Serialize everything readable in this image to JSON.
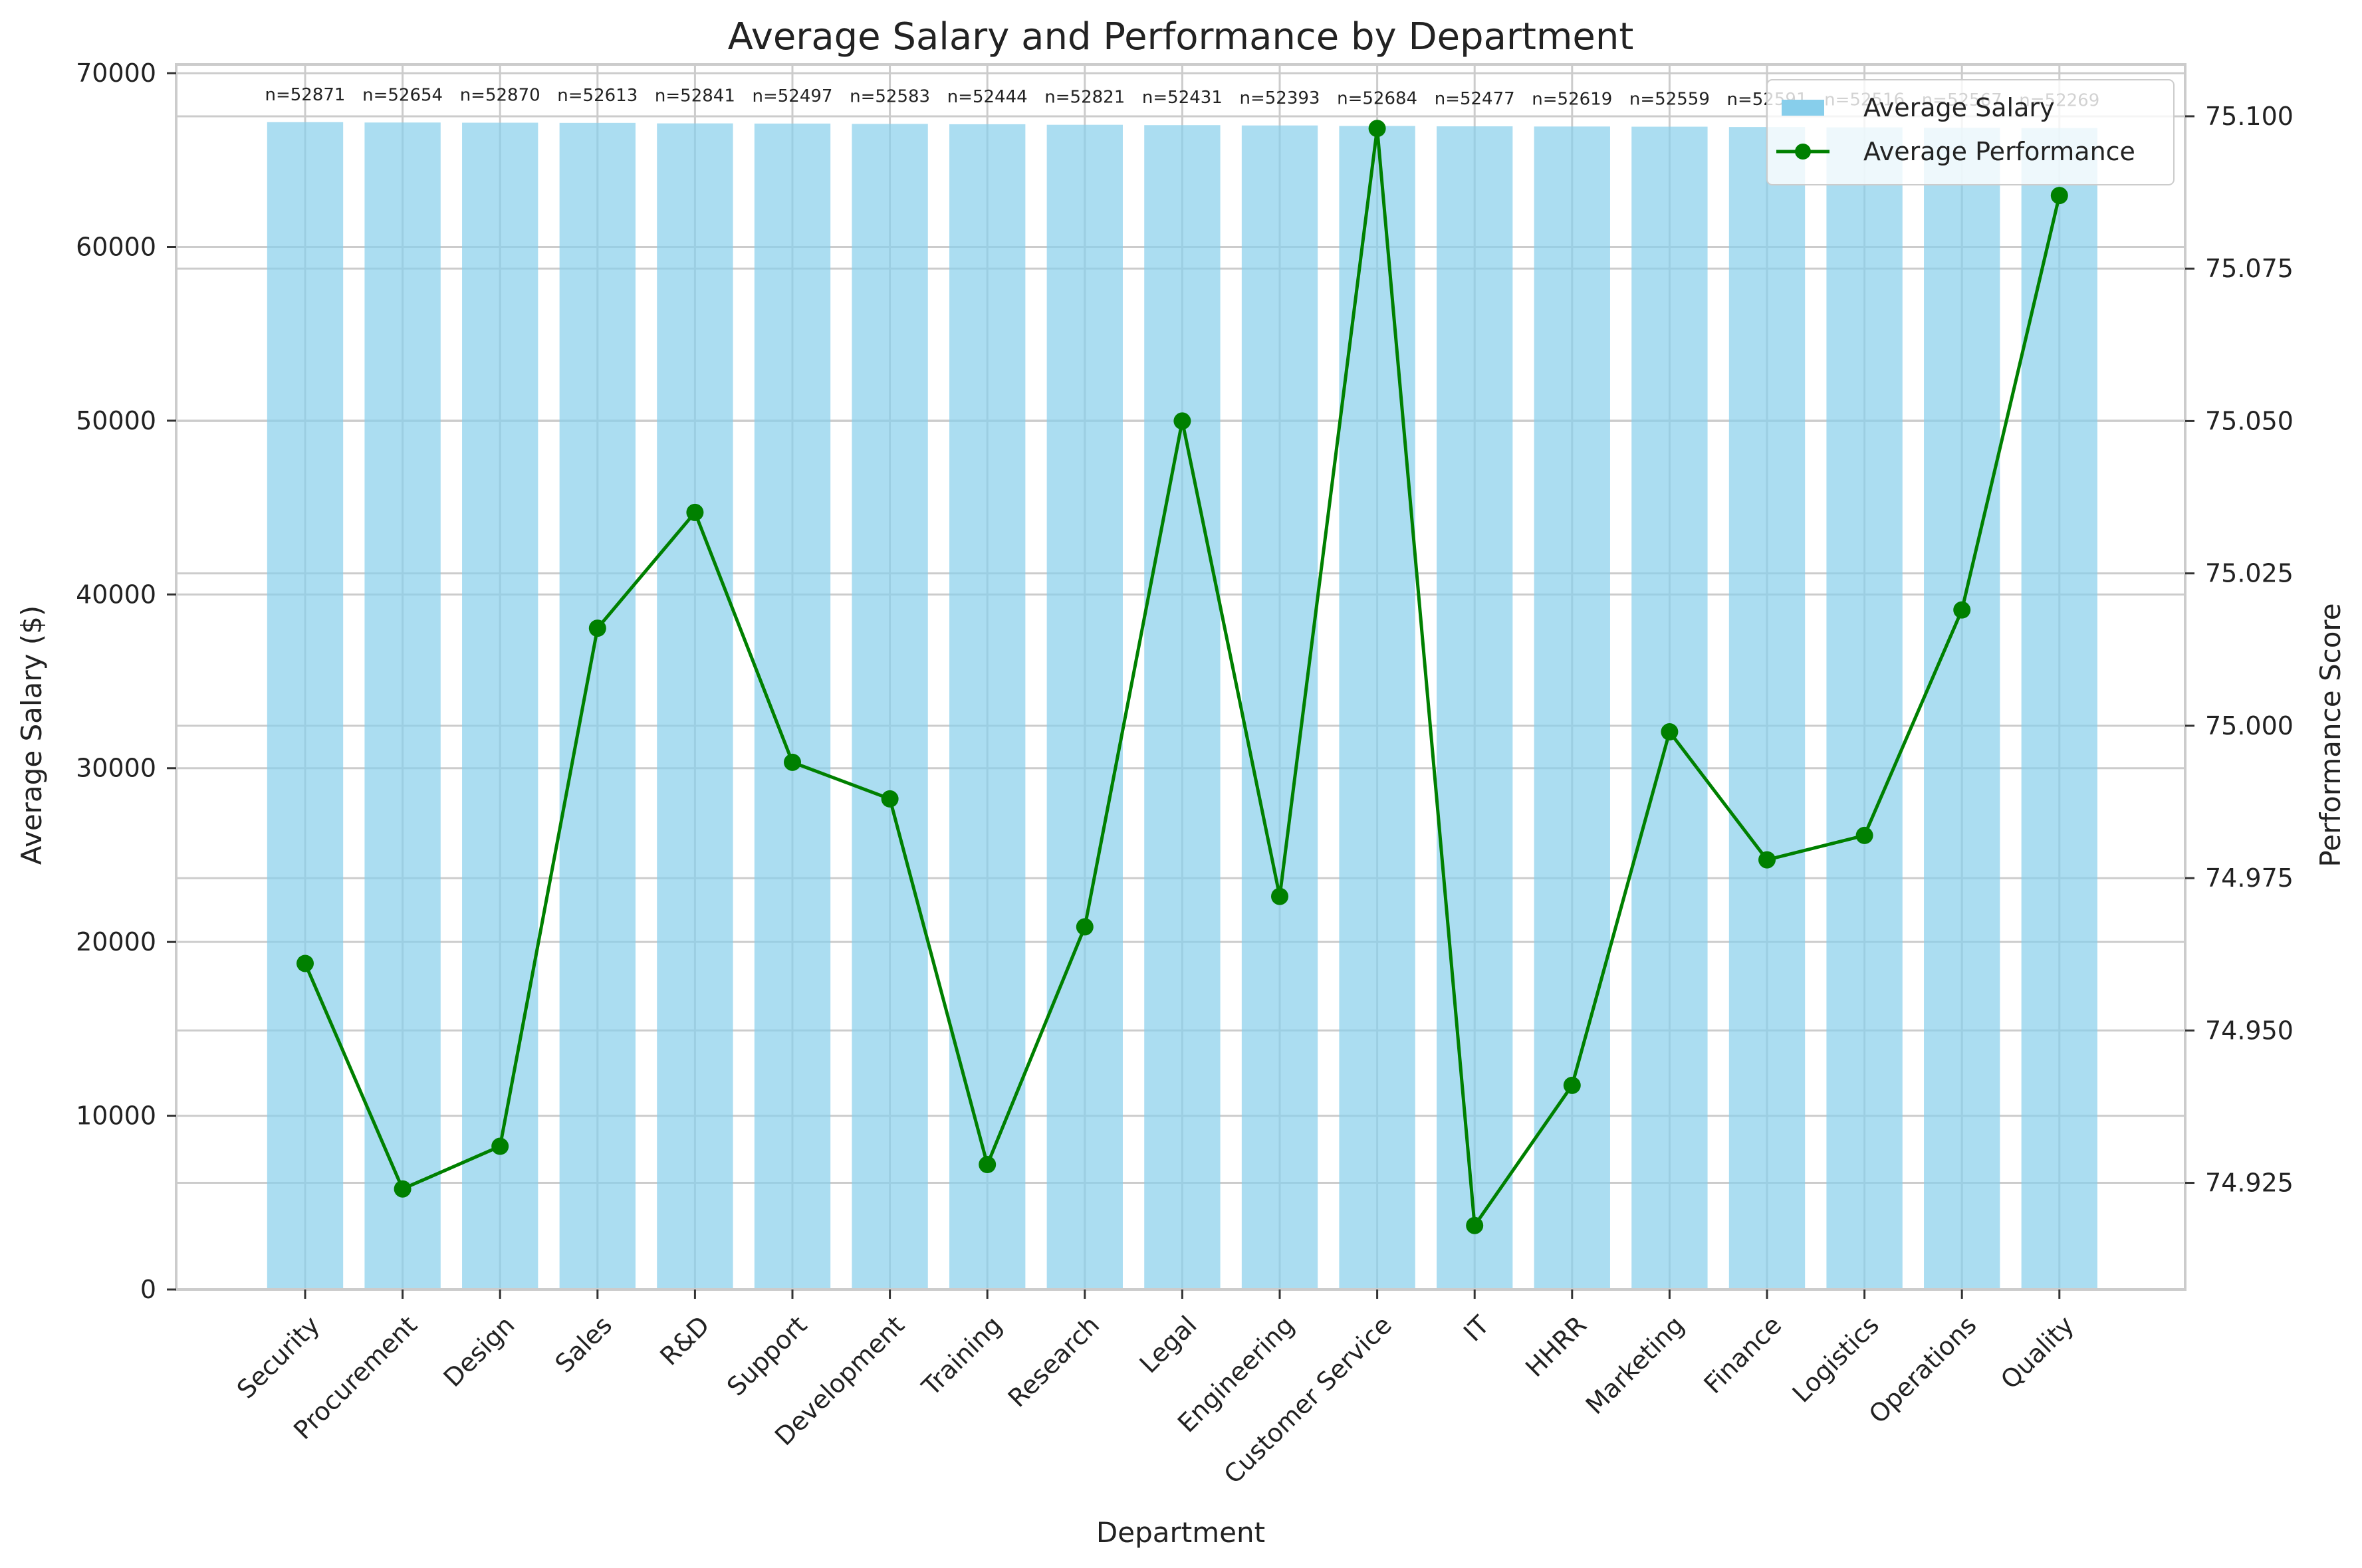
{
  "chart_data": {
    "type": "bar+line",
    "title": "Average Salary and Performance by Department",
    "xlabel": "Department",
    "ylabel": "Average Salary ($)",
    "y2label": "Performance Score",
    "ylim": [
      0,
      70500
    ],
    "y2lim": [
      74.9075,
      75.1085
    ],
    "yticks": [
      0,
      10000,
      20000,
      30000,
      40000,
      50000,
      60000,
      70000
    ],
    "y2ticks": [
      "74.925",
      "74.950",
      "74.975",
      "75.000",
      "75.025",
      "75.050",
      "75.075",
      "75.100"
    ],
    "grid": true,
    "legend_position": "top-right",
    "categories": [
      "Security",
      "Procurement",
      "Design",
      "Sales",
      "R&D",
      "Support",
      "Development",
      "Training",
      "Research",
      "Legal",
      "Engineering",
      "Customer Service",
      "IT",
      "HHRR",
      "Marketing",
      "Finance",
      "Logistics",
      "Operations",
      "Quality"
    ],
    "series": [
      {
        "name": "Average Salary",
        "kind": "bar",
        "axis": "left",
        "color": "#87ceeb",
        "values": [
          67180,
          67160,
          67150,
          67140,
          67110,
          67100,
          67080,
          67060,
          67030,
          67010,
          66990,
          66960,
          66940,
          66930,
          66920,
          66900,
          66880,
          66860,
          66840
        ]
      },
      {
        "name": "Average Performance",
        "kind": "line",
        "axis": "right",
        "color": "#008000",
        "values": [
          74.961,
          74.924,
          74.931,
          75.016,
          75.035,
          74.994,
          74.988,
          74.928,
          74.967,
          75.05,
          74.972,
          75.098,
          74.918,
          74.941,
          74.999,
          74.978,
          74.982,
          75.019,
          75.087
        ]
      }
    ],
    "counts": [
      "n=52871",
      "n=52654",
      "n=52870",
      "n=52613",
      "n=52841",
      "n=52497",
      "n=52583",
      "n=52444",
      "n=52821",
      "n=52431",
      "n=52393",
      "n=52684",
      "n=52477",
      "n=52619",
      "n=52559",
      "n=52591",
      "n=52516",
      "n=52567",
      "n=52269"
    ]
  }
}
